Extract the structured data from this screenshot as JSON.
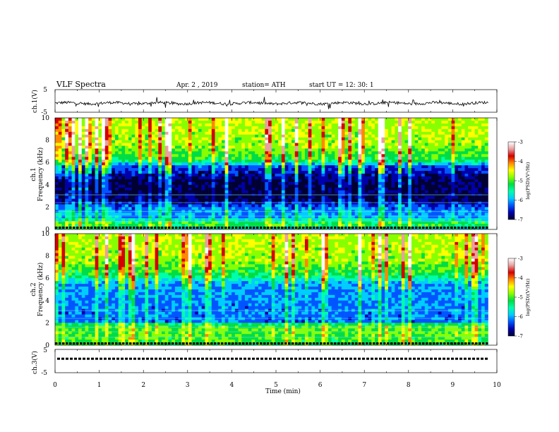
{
  "header": {
    "title": "VLF  Spectra",
    "date": "Apr. 2  , 2019",
    "station": "station= ATH",
    "start": "start  UT  =    12: 30: 1"
  },
  "chart_data": {
    "type": "heatmap",
    "title": "VLF  Spectra",
    "xlabel": "Time  (min)",
    "xlim": [
      0,
      10
    ],
    "x_ticks": [
      "0",
      "1",
      "2",
      "3",
      "4",
      "5",
      "6",
      "7",
      "8",
      "9",
      "10"
    ],
    "data_extent_min": 9.8,
    "panels": [
      {
        "name": "ch.1(V)",
        "kind": "waveform",
        "ylabel": "ch.1(V)",
        "ylim": [
          -5,
          5
        ],
        "y_ticks": [
          "5",
          "-5"
        ],
        "baseline": -1,
        "series_color": "#000000"
      },
      {
        "name": "ch.1",
        "kind": "spectrogram",
        "ylabel_lines": [
          "ch.1",
          "Frequency  (kHz)"
        ],
        "ylim": [
          0,
          10
        ],
        "y_ticks": [
          "0",
          "2",
          "4",
          "6",
          "8",
          "10"
        ],
        "band_intensity_by_kHz": [
          [
            0,
            0.3
          ],
          [
            0.5,
            0.5
          ],
          [
            1.0,
            0.28
          ],
          [
            2.0,
            0.22
          ],
          [
            2.6,
            0.06
          ],
          [
            4.0,
            0.04
          ],
          [
            5.6,
            0.18
          ],
          [
            6.2,
            0.45
          ],
          [
            7.5,
            0.55
          ],
          [
            10,
            0.58
          ]
        ]
      },
      {
        "name": "ch.2",
        "kind": "spectrogram",
        "ylabel_lines": [
          "ch.2",
          "Frequency  (kHz)"
        ],
        "ylim": [
          0,
          10
        ],
        "y_ticks": [
          "0",
          "2",
          "4",
          "6",
          "8",
          "10"
        ],
        "band_intensity_by_kHz": [
          [
            0,
            0.45
          ],
          [
            1.0,
            0.5
          ],
          [
            1.8,
            0.5
          ],
          [
            2.1,
            0.22
          ],
          [
            4.0,
            0.24
          ],
          [
            5.5,
            0.26
          ],
          [
            6.3,
            0.45
          ],
          [
            7.5,
            0.55
          ],
          [
            10,
            0.58
          ]
        ]
      },
      {
        "name": "ch.3(V)",
        "kind": "waveform",
        "ylabel": "ch.3(V)",
        "ylim": [
          -5,
          5
        ],
        "y_ticks": [
          "5",
          "-5"
        ],
        "baseline": 1,
        "series_color": "#000000"
      }
    ],
    "colorbar": {
      "label": "log(PSD)(V²/Hz)",
      "ticks": [
        "-3",
        "-4",
        "-5",
        "-6",
        "-7"
      ],
      "range": [
        -7,
        -3
      ],
      "colors": [
        "#ffffff",
        "#e8a0a0",
        "#d40000",
        "#ff8800",
        "#ffff00",
        "#88ff00",
        "#00dd44",
        "#00ffaa",
        "#00ccff",
        "#0055ff",
        "#0000aa",
        "#000033"
      ]
    }
  }
}
